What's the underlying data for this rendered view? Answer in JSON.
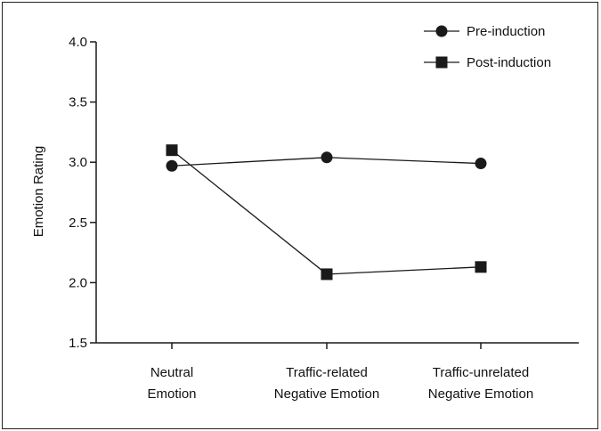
{
  "chart_data": {
    "type": "line",
    "title": "",
    "xlabel": "",
    "ylabel": "Emotion Rating",
    "ylim": [
      1.5,
      4.0
    ],
    "yticks": [
      "1.5",
      "2.0",
      "2.5",
      "3.0",
      "3.5",
      "4.0"
    ],
    "categories": [
      [
        "Neutral",
        "Emotion"
      ],
      [
        "Traffic-related",
        "Negative Emotion"
      ],
      [
        "Traffic-unrelated",
        "Negative Emotion"
      ]
    ],
    "series": [
      {
        "name": "Pre-induction",
        "marker": "circle",
        "values": [
          2.97,
          3.04,
          2.99
        ]
      },
      {
        "name": "Post-induction",
        "marker": "square",
        "values": [
          3.1,
          2.07,
          2.13
        ]
      }
    ],
    "grid": false,
    "legend_position": "top-right",
    "colors": {
      "line": "#1a1a1a",
      "marker": "#1a1a1a"
    }
  }
}
